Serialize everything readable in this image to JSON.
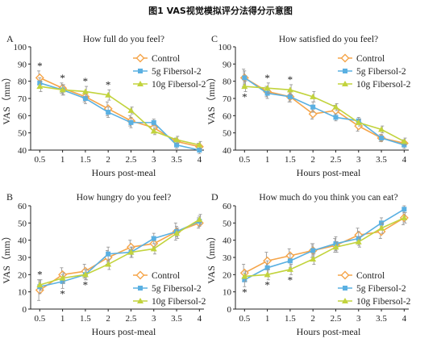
{
  "figure_title": "图1 VAS视觉模拟评分法得分示意图",
  "legend_labels": [
    "Control",
    "5g Fibersol-2",
    "10g Fibersol-2"
  ],
  "colors": {
    "control": "#f5a54a",
    "fib5": "#5ab0e2",
    "fib10": "#c2d33c",
    "error": "#999999",
    "axis": "#222222"
  },
  "chart_data": [
    {
      "panel": "A",
      "type": "line",
      "title": "How full do you feel?",
      "xlabel": "Hours post-meal",
      "ylabel": "VAS（mm）",
      "categories": [
        "0.5",
        "1",
        "1.5",
        "2",
        "2.5",
        "3",
        "3.5",
        "4"
      ],
      "ylim": [
        40,
        100
      ],
      "yticks": [
        "40",
        "50",
        "60",
        "70",
        "80",
        "90",
        "100"
      ],
      "series": [
        {
          "name": "Control",
          "values": [
            82,
            76,
            71,
            64,
            57,
            53,
            45,
            42
          ],
          "errors": [
            4,
            3,
            3,
            4,
            3,
            3,
            2,
            2
          ]
        },
        {
          "name": "5g Fibersol-2",
          "values": [
            79,
            75,
            70,
            62,
            56,
            56,
            43,
            40
          ],
          "errors": [
            3,
            3,
            3,
            3,
            3,
            2,
            2,
            2
          ]
        },
        {
          "name": "10g Fibersol-2",
          "values": [
            77,
            75,
            74,
            72,
            63,
            51,
            46,
            43
          ],
          "errors": [
            3,
            3,
            3,
            3,
            2,
            2,
            2,
            2
          ]
        }
      ],
      "annotations": [
        {
          "x": "0.5",
          "text": "*",
          "pos": "above"
        },
        {
          "x": "1",
          "text": "*",
          "pos": "above"
        },
        {
          "x": "1.5",
          "text": "*",
          "pos": "above"
        },
        {
          "x": "2",
          "text": "*",
          "pos": "above"
        }
      ],
      "legend_placement": "top-right"
    },
    {
      "panel": "C",
      "type": "line",
      "title": "How satisfied do you feel?",
      "xlabel": "Hours post-meal",
      "ylabel": "VAS（mm）",
      "categories": [
        "0.5",
        "1",
        "1.5",
        "2",
        "2.5",
        "3",
        "3.5",
        "4"
      ],
      "ylim": [
        40,
        100
      ],
      "yticks": [
        "40",
        "50",
        "60",
        "70",
        "80",
        "90",
        "100"
      ],
      "series": [
        {
          "name": "Control",
          "values": [
            82,
            74,
            71,
            61,
            63,
            54,
            47,
            44
          ],
          "errors": [
            5,
            3,
            3,
            3,
            3,
            3,
            2,
            2
          ]
        },
        {
          "name": "5g Fibersol-2",
          "values": [
            82,
            73,
            71,
            65,
            59,
            57,
            47,
            43
          ],
          "errors": [
            4,
            3,
            3,
            3,
            2,
            2,
            2,
            2
          ]
        },
        {
          "name": "10g Fibersol-2",
          "values": [
            77,
            76,
            75,
            71,
            65,
            56,
            52,
            45
          ],
          "errors": [
            3,
            3,
            3,
            3,
            2,
            2,
            2,
            2
          ]
        }
      ],
      "annotations": [
        {
          "x": "0.5",
          "text": "*",
          "pos": "below"
        },
        {
          "x": "1",
          "text": "*",
          "pos": "above"
        },
        {
          "x": "1.5",
          "text": "*",
          "pos": "above"
        }
      ],
      "legend_placement": "top-right"
    },
    {
      "panel": "B",
      "type": "line",
      "title": "How hungry do you feel?",
      "xlabel": "Hours post-meal",
      "ylabel": "VAS（mm）",
      "categories": [
        "0.5",
        "1",
        "1.5",
        "2",
        "2.5",
        "3",
        "3.5",
        "4"
      ],
      "ylim": [
        0,
        60
      ],
      "yticks": [
        "0",
        "10",
        "20",
        "30",
        "40",
        "50",
        "60"
      ],
      "series": [
        {
          "name": "Control",
          "values": [
            11,
            20,
            22,
            30,
            36,
            38,
            45,
            50
          ],
          "errors": [
            6,
            4,
            4,
            4,
            4,
            4,
            5,
            3
          ]
        },
        {
          "name": "5g Fibersol-2",
          "values": [
            13,
            16,
            20,
            32,
            33,
            41,
            45,
            51
          ],
          "errors": [
            4,
            4,
            3,
            4,
            3,
            3,
            3,
            3
          ]
        },
        {
          "name": "10g Fibersol-2",
          "values": [
            14,
            18,
            20,
            26,
            33,
            35,
            44,
            52
          ],
          "errors": [
            3,
            3,
            3,
            3,
            3,
            3,
            3,
            3
          ]
        }
      ],
      "annotations": [
        {
          "x": "0.5",
          "text": "*",
          "pos": "above"
        },
        {
          "x": "1",
          "text": "*",
          "pos": "below"
        },
        {
          "x": "1.5",
          "text": "*",
          "pos": "below"
        }
      ],
      "legend_placement": "bottom-right"
    },
    {
      "panel": "D",
      "type": "line",
      "title": "How much  do you think you can eat?",
      "xlabel": "Hours post-meal",
      "ylabel": "VAS（mm）",
      "categories": [
        "0.5",
        "1",
        "1.5",
        "2",
        "2.5",
        "3",
        "3.5",
        "4"
      ],
      "ylim": [
        0,
        60
      ],
      "yticks": [
        "0",
        "10",
        "20",
        "30",
        "40",
        "50",
        "60"
      ],
      "series": [
        {
          "name": "Control",
          "values": [
            21,
            28,
            31,
            34,
            37,
            43,
            45,
            53
          ],
          "errors": [
            5,
            5,
            4,
            4,
            4,
            4,
            4,
            4
          ]
        },
        {
          "name": "5g Fibersol-2",
          "values": [
            17,
            24,
            28,
            34,
            38,
            41,
            50,
            58
          ],
          "errors": [
            4,
            4,
            4,
            4,
            4,
            4,
            3,
            2
          ]
        },
        {
          "name": "10g Fibersol-2",
          "values": [
            19,
            20,
            23,
            29,
            36,
            39,
            47,
            53
          ],
          "errors": [
            3,
            3,
            3,
            3,
            3,
            3,
            3,
            3
          ]
        }
      ],
      "annotations": [
        {
          "x": "0.5",
          "text": "*",
          "pos": "below"
        },
        {
          "x": "1",
          "text": "*",
          "pos": "below"
        },
        {
          "x": "1.5",
          "text": "*",
          "pos": "below"
        }
      ],
      "legend_placement": "bottom-right"
    }
  ]
}
